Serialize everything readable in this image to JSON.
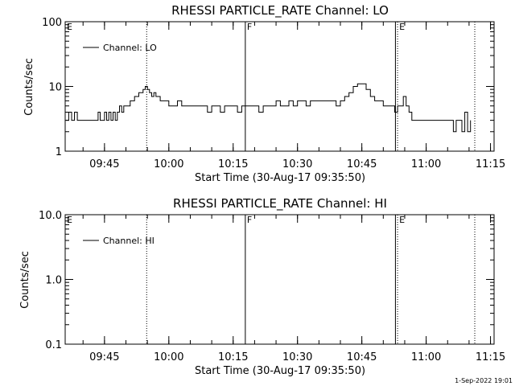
{
  "footer": {
    "timestamp": "1-Sep-2022 19:01"
  },
  "chart_data": [
    {
      "type": "line",
      "title": "RHESSI PARTICLE_RATE Channel: LO",
      "xlabel": "Start Time (30-Aug-17 09:35:50)",
      "ylabel": "Counts/sec",
      "y_scale": "log",
      "ylim": [
        1,
        100
      ],
      "y_ticks": [
        "1",
        "10",
        "100"
      ],
      "xlim": [
        "09:35:50",
        "11:15:50"
      ],
      "x_ticks": [
        "09:45",
        "10:00",
        "10:15",
        "10:30",
        "10:45",
        "11:00",
        "11:15"
      ],
      "legend": {
        "entries": [
          "Channel: LO"
        ],
        "position": "top-left"
      },
      "markers": [
        {
          "time": "09:35:50",
          "label": "E",
          "style": "dotted"
        },
        {
          "time": "09:54:50",
          "label": "",
          "style": "dotted"
        },
        {
          "time": "10:17:50",
          "label": "F",
          "style": "solid"
        },
        {
          "time": "10:52:50",
          "label": "",
          "style": "solid"
        },
        {
          "time": "10:53:20",
          "label": "E",
          "style": "dotted"
        },
        {
          "time": "11:11:20",
          "label": "",
          "style": "dotted"
        }
      ],
      "series": [
        {
          "name": "Channel: LO",
          "x": [
            "09:36:00",
            "09:36:40",
            "09:37:20",
            "09:38:00",
            "09:38:40",
            "09:39:20",
            "09:40:00",
            "09:41:00",
            "09:42:00",
            "09:43:00",
            "09:43:30",
            "09:44:00",
            "09:44:30",
            "09:45:00",
            "09:45:30",
            "09:46:00",
            "09:46:30",
            "09:47:00",
            "09:47:30",
            "09:48:00",
            "09:48:30",
            "09:49:00",
            "09:49:30",
            "09:50:00",
            "09:50:30",
            "09:51:00",
            "09:51:30",
            "09:52:00",
            "09:52:30",
            "09:53:00",
            "09:53:30",
            "09:54:00",
            "09:54:30",
            "09:55:00",
            "09:55:30",
            "09:56:00",
            "09:56:30",
            "09:57:00",
            "09:58:00",
            "09:59:00",
            "09:59:30",
            "10:00:00",
            "10:01:00",
            "10:02:00",
            "10:03:00",
            "10:04:00",
            "10:05:00",
            "10:06:00",
            "10:07:00",
            "10:08:00",
            "10:09:00",
            "10:10:00",
            "10:11:00",
            "10:12:00",
            "10:13:00",
            "10:14:00",
            "10:15:00",
            "10:16:00",
            "10:17:00",
            "10:18:00",
            "10:19:00",
            "10:20:00",
            "10:21:00",
            "10:22:00",
            "10:23:00",
            "10:24:00",
            "10:25:00",
            "10:26:00",
            "10:27:00",
            "10:28:00",
            "10:29:00",
            "10:30:00",
            "10:31:00",
            "10:32:00",
            "10:33:00",
            "10:34:00",
            "10:35:00",
            "10:36:00",
            "10:37:00",
            "10:38:00",
            "10:39:00",
            "10:40:00",
            "10:41:00",
            "10:42:00",
            "10:43:00",
            "10:44:00",
            "10:45:00",
            "10:46:00",
            "10:47:00",
            "10:48:00",
            "10:49:00",
            "10:50:00",
            "10:51:00",
            "10:52:00",
            "10:52:40",
            "10:53:20",
            "10:54:00",
            "10:54:40",
            "10:55:20",
            "10:56:00",
            "10:56:40",
            "10:57:20",
            "10:58:00",
            "10:59:00",
            "11:00:00",
            "11:01:00",
            "11:02:00",
            "11:03:00",
            "11:04:00",
            "11:05:00",
            "11:05:40",
            "11:06:20",
            "11:07:00",
            "11:07:40",
            "11:08:20",
            "11:09:00",
            "11:09:40",
            "11:10:20"
          ],
          "y": [
            3,
            4,
            3,
            4,
            3,
            3,
            3,
            3,
            3,
            3,
            4,
            3,
            3,
            4,
            3,
            4,
            3,
            4,
            3,
            4,
            5,
            4,
            5,
            5,
            5,
            6,
            6,
            7,
            7,
            8,
            8,
            9,
            10,
            9,
            8,
            7,
            8,
            7,
            6,
            6,
            6,
            5,
            5,
            6,
            5,
            5,
            5,
            5,
            5,
            5,
            4,
            5,
            5,
            4,
            5,
            5,
            5,
            4,
            5,
            5,
            5,
            5,
            4,
            5,
            5,
            5,
            6,
            5,
            5,
            6,
            5,
            6,
            6,
            5,
            6,
            6,
            6,
            6,
            6,
            6,
            5,
            6,
            7,
            8,
            10,
            11,
            11,
            9,
            7,
            6,
            6,
            5,
            5,
            5,
            4,
            5,
            5,
            7,
            5,
            4,
            3,
            3,
            3,
            3,
            3,
            3,
            3,
            3,
            3,
            3,
            3,
            2,
            3,
            3,
            2,
            4,
            2,
            3
          ]
        }
      ]
    },
    {
      "type": "line",
      "title": "RHESSI PARTICLE_RATE Channel: HI",
      "xlabel": "Start Time (30-Aug-17 09:35:50)",
      "ylabel": "Counts/sec",
      "y_scale": "log",
      "ylim": [
        0.1,
        10
      ],
      "y_ticks": [
        "0.1",
        "1.0",
        "10.0"
      ],
      "xlim": [
        "09:35:50",
        "11:15:50"
      ],
      "x_ticks": [
        "09:45",
        "10:00",
        "10:15",
        "10:30",
        "10:45",
        "11:00",
        "11:15"
      ],
      "legend": {
        "entries": [
          "Channel: HI"
        ],
        "position": "top-left"
      },
      "markers": [
        {
          "time": "09:35:50",
          "label": "E",
          "style": "dotted"
        },
        {
          "time": "09:54:50",
          "label": "",
          "style": "dotted"
        },
        {
          "time": "10:17:50",
          "label": "F",
          "style": "solid"
        },
        {
          "time": "10:52:50",
          "label": "",
          "style": "solid"
        },
        {
          "time": "10:53:20",
          "label": "E",
          "style": "dotted"
        },
        {
          "time": "11:11:20",
          "label": "",
          "style": "dotted"
        }
      ],
      "series": [
        {
          "name": "Channel: HI",
          "x": [],
          "y": []
        }
      ]
    }
  ]
}
